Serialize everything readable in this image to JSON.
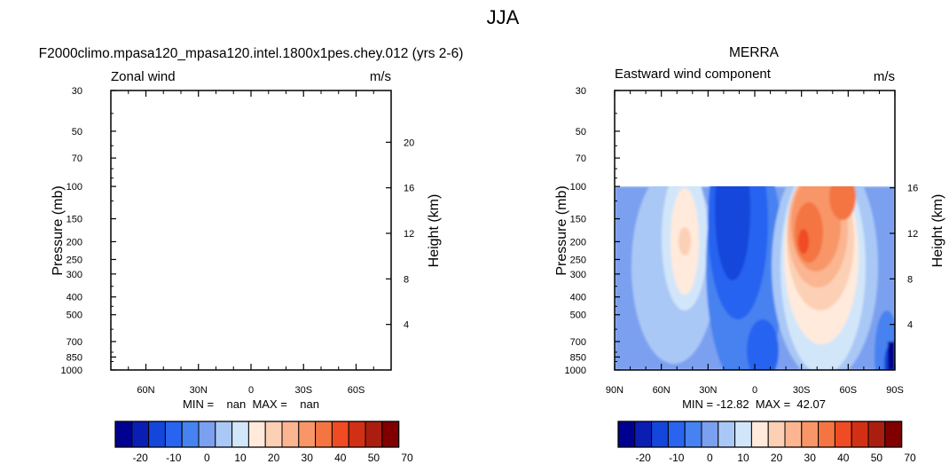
{
  "page_title": "JJA",
  "colors": [
    "#000090",
    "#0a1eb4",
    "#1446dc",
    "#2864f0",
    "#4682f0",
    "#7ba0f0",
    "#aac8f5",
    "#d2e6fa",
    "#ffeadc",
    "#fcd0b5",
    "#fbb590",
    "#f89668",
    "#f47542",
    "#f04b22",
    "#d23014",
    "#aa1e0f",
    "#800000"
  ],
  "colorbar_labels": [
    "-20",
    "-10",
    "0",
    "10",
    "20",
    "30",
    "40",
    "50",
    "70"
  ],
  "chart_data": [
    {
      "type": "contour",
      "title": "F2000climo.mpasa120_mpasa120.intel.1800x1pes.chey.012 (yrs 2-6)",
      "left_string": "Zonal wind",
      "right_string": "m/s",
      "ylabel": "Pressure (mb)",
      "ylabel_right": "Height (km)",
      "yticks": [
        "30",
        "50",
        "70",
        "100",
        "150",
        "200",
        "250",
        "300",
        "400",
        "500",
        "700",
        "850",
        "1000"
      ],
      "ypressures": [
        30,
        50,
        70,
        100,
        150,
        200,
        250,
        300,
        400,
        500,
        700,
        850,
        1000
      ],
      "xticks": [
        "60N",
        "30N",
        "0",
        "30S",
        "60S"
      ],
      "xtick_lats": [
        60,
        30,
        0,
        -30,
        -60
      ],
      "xlim": [
        80,
        -80
      ],
      "height_ticks": [
        "20",
        "16",
        "12",
        "8",
        "4"
      ],
      "height_km": [
        20,
        16,
        12,
        8,
        4
      ],
      "stats": "MIN =    nan  MAX =    nan",
      "data_available": false
    },
    {
      "type": "contour",
      "title": "MERRA",
      "left_string": "Eastward wind component",
      "right_string": "m/s",
      "ylabel": "Pressure (mb)",
      "ylabel_right": "Height (km)",
      "yticks": [
        "30",
        "50",
        "70",
        "100",
        "150",
        "200",
        "250",
        "300",
        "400",
        "500",
        "700",
        "850",
        "1000"
      ],
      "ypressures": [
        30,
        50,
        70,
        100,
        150,
        200,
        250,
        300,
        400,
        500,
        700,
        850,
        1000
      ],
      "xticks": [
        "90N",
        "60N",
        "30N",
        "0",
        "30S",
        "60S",
        "90S"
      ],
      "xtick_lats": [
        90,
        60,
        30,
        0,
        -30,
        -60,
        -90
      ],
      "xlim": [
        90,
        -90
      ],
      "height_ticks": [
        "16",
        "12",
        "8",
        "4"
      ],
      "height_km": [
        16,
        12,
        8,
        4
      ],
      "stats": "MIN = -12.82  MAX =  42.07",
      "data_top_pressure": 100,
      "min": -12.82,
      "max": 42.07,
      "data_available": true
    }
  ]
}
